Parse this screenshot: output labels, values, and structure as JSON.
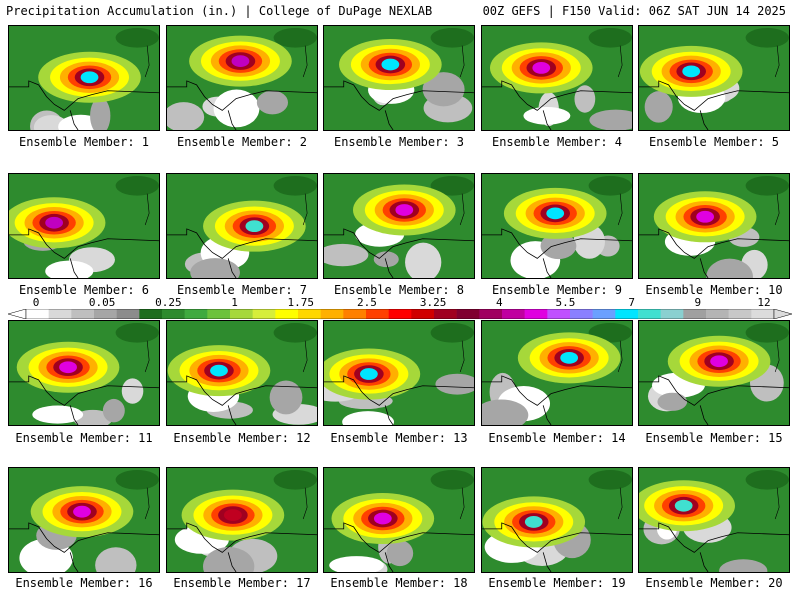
{
  "header": {
    "left": "Precipitation Accumulation (in.) | College of DuPage NEXLAB",
    "right": "00Z GEFS | F150 Valid: 06Z SAT JUN 14 2025"
  },
  "members": [
    {
      "label": "Ensemble Member: 1",
      "max_color": "#00e5ff"
    },
    {
      "label": "Ensemble Member: 2",
      "max_color": "#c000c0"
    },
    {
      "label": "Ensemble Member: 3",
      "max_color": "#00e5ff"
    },
    {
      "label": "Ensemble Member: 4",
      "max_color": "#e000e0"
    },
    {
      "label": "Ensemble Member: 5",
      "max_color": "#00e5ff"
    },
    {
      "label": "Ensemble Member: 6",
      "max_color": "#c000c0"
    },
    {
      "label": "Ensemble Member: 7",
      "max_color": "#40e0d0"
    },
    {
      "label": "Ensemble Member: 8",
      "max_color": "#e000e0"
    },
    {
      "label": "Ensemble Member: 9",
      "max_color": "#00e5ff"
    },
    {
      "label": "Ensemble Member: 10",
      "max_color": "#e000e0"
    },
    {
      "label": "Ensemble Member: 11",
      "max_color": "#e000e0"
    },
    {
      "label": "Ensemble Member: 12",
      "max_color": "#00e5ff"
    },
    {
      "label": "Ensemble Member: 13",
      "max_color": "#00e5ff"
    },
    {
      "label": "Ensemble Member: 14",
      "max_color": "#00e5ff"
    },
    {
      "label": "Ensemble Member: 15",
      "max_color": "#e000e0"
    },
    {
      "label": "Ensemble Member: 16",
      "max_color": "#e000e0"
    },
    {
      "label": "Ensemble Member: 17",
      "max_color": "#c00020"
    },
    {
      "label": "Ensemble Member: 18",
      "max_color": "#e000e0"
    },
    {
      "label": "Ensemble Member: 19",
      "max_color": "#40e0d0"
    },
    {
      "label": "Ensemble Member: 20",
      "max_color": "#40e0d0"
    }
  ],
  "colorbar": {
    "labels": [
      "0",
      "0.05",
      "0.25",
      "1",
      "1.75",
      "2.5",
      "3.25",
      "4",
      "5.5",
      "7",
      "9",
      "12"
    ],
    "colors": [
      "#ffffff",
      "#d9d9d9",
      "#bfbfbf",
      "#a6a6a6",
      "#8c8c8c",
      "#1e6e1e",
      "#2e8b2e",
      "#3faa3f",
      "#6cc23c",
      "#a6d83a",
      "#d6ee3a",
      "#ffff00",
      "#ffd700",
      "#ffb000",
      "#ff8000",
      "#ff4000",
      "#ff0000",
      "#d00000",
      "#a00020",
      "#800030",
      "#a00060",
      "#c000a0",
      "#e000e0",
      "#c050ff",
      "#8a80ff",
      "#6aa0ff",
      "#00e5ff",
      "#40e0d0",
      "#8ad0d0",
      "#a0a0a0",
      "#b4b4b4",
      "#c8c8c8",
      "#dcdcdc"
    ]
  }
}
